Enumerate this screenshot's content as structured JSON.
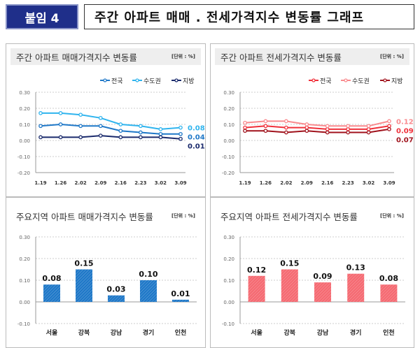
{
  "header": {
    "badge": "붙임 4",
    "title": "주간 아파트 매매 . 전세가격지수 변동률 그래프"
  },
  "chart_data": [
    {
      "type": "line",
      "title": "주간 아파트 매매가격지수 변동률",
      "unit": "[단위 : %]",
      "categories": [
        "1.19",
        "1.26",
        "2.02",
        "2.09",
        "2.16",
        "2.23",
        "3.02",
        "3.09"
      ],
      "ylim": [
        -0.2,
        0.3
      ],
      "yticks": [
        "0.30",
        "0.20",
        "0.10",
        "0.00",
        "-0.10",
        "-0.20"
      ],
      "grid": true,
      "legend": "top-right",
      "series": [
        {
          "name": "전국",
          "color": "#1f78c8",
          "values": [
            0.09,
            0.1,
            0.09,
            0.09,
            0.06,
            0.05,
            0.04,
            0.04
          ],
          "end_label": "0.04"
        },
        {
          "name": "수도권",
          "color": "#2fb4ee",
          "values": [
            0.17,
            0.17,
            0.16,
            0.14,
            0.1,
            0.09,
            0.07,
            0.08
          ],
          "end_label": "0.08"
        },
        {
          "name": "지방",
          "color": "#1a2a6c",
          "values": [
            0.02,
            0.02,
            0.02,
            0.03,
            0.02,
            0.02,
            0.02,
            0.01
          ],
          "end_label": "0.01"
        }
      ]
    },
    {
      "type": "line",
      "title": "주간 아파트 전세가격지수 변동률",
      "unit": "[단위 : %]",
      "categories": [
        "1.19",
        "1.26",
        "2.02",
        "2.09",
        "2.16",
        "2.23",
        "3.02",
        "3.09"
      ],
      "ylim": [
        -0.2,
        0.3
      ],
      "yticks": [
        "0.30",
        "0.20",
        "0.10",
        "0.00",
        "-0.10",
        "-0.20"
      ],
      "grid": true,
      "legend": "top-right",
      "series": [
        {
          "name": "전국",
          "color": "#f0303a",
          "values": [
            0.08,
            0.09,
            0.08,
            0.08,
            0.07,
            0.07,
            0.07,
            0.09
          ],
          "end_label": "0.09"
        },
        {
          "name": "수도권",
          "color": "#f98a8e",
          "values": [
            0.11,
            0.12,
            0.12,
            0.1,
            0.09,
            0.09,
            0.09,
            0.12
          ],
          "end_label": "0.12"
        },
        {
          "name": "지방",
          "color": "#a0121c",
          "values": [
            0.06,
            0.06,
            0.05,
            0.06,
            0.05,
            0.05,
            0.05,
            0.07
          ],
          "end_label": "0.07"
        }
      ]
    },
    {
      "type": "bar",
      "title": "주요지역 아파트 매매가격지수 변동률",
      "unit": "[단위 : %]",
      "categories": [
        "서울",
        "강북",
        "강남",
        "경기",
        "인천"
      ],
      "values": [
        0.08,
        0.15,
        0.03,
        0.1,
        0.01
      ],
      "labels": [
        "0.08",
        "0.15",
        "0.03",
        "0.10",
        "0.01"
      ],
      "color": "#1f78c8",
      "ylim": [
        -0.1,
        0.3
      ],
      "yticks": [
        "0.30",
        "0.20",
        "0.10",
        "0.00",
        "-0.10"
      ],
      "grid": true
    },
    {
      "type": "bar",
      "title": "주요지역 아파트 전세가격지수 변동률",
      "unit": "[단위 : %]",
      "categories": [
        "서울",
        "강북",
        "강남",
        "경기",
        "인천"
      ],
      "values": [
        0.12,
        0.15,
        0.09,
        0.13,
        0.08
      ],
      "labels": [
        "0.12",
        "0.15",
        "0.09",
        "0.13",
        "0.08"
      ],
      "color": "#f56a72",
      "ylim": [
        -0.1,
        0.3
      ],
      "yticks": [
        "0.30",
        "0.20",
        "0.10",
        "0.00",
        "-0.10"
      ],
      "grid": true
    }
  ]
}
